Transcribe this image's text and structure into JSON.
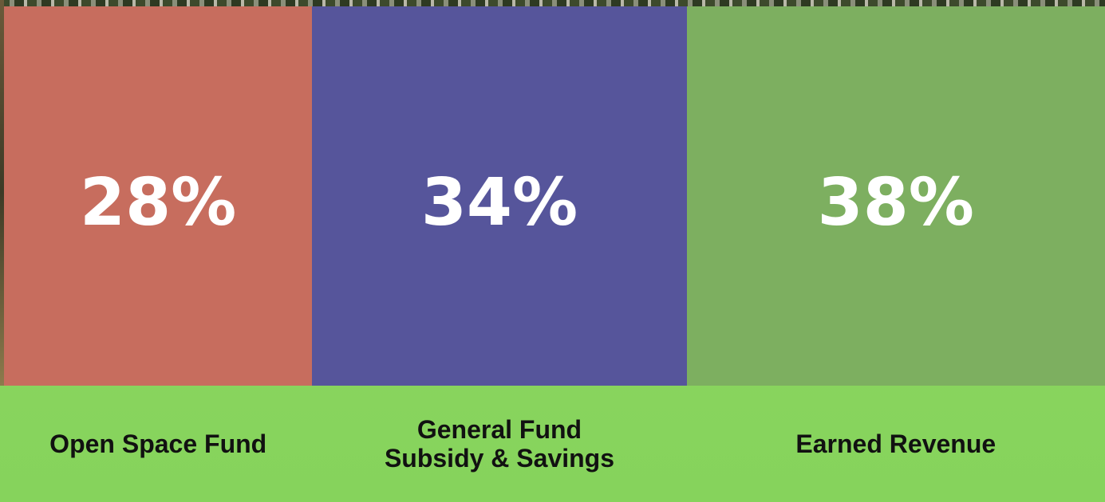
{
  "chart_data": {
    "type": "proportion_bar",
    "categories": [
      "Open Space Fund",
      "General Fund\nSubsidy & Savings",
      "Earned Revenue"
    ],
    "values": [
      28,
      34,
      38
    ],
    "value_labels": [
      "28%",
      "34%",
      "38%"
    ],
    "colors": [
      "#c76d5e",
      "#56559b",
      "#7daf60"
    ]
  }
}
